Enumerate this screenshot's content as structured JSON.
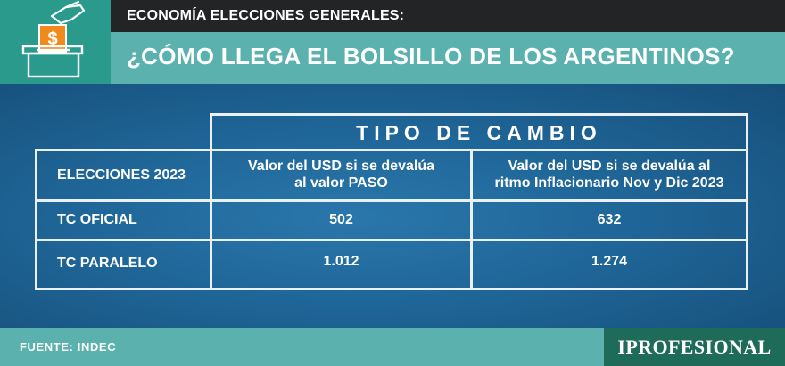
{
  "header": {
    "kicker": "ECONOMÍA ELECCIONES GENERALES:",
    "title": "¿CÓMO LLEGA EL BOLSILLO DE LOS ARGENTINOS?"
  },
  "logo": {
    "icon": "ballot-box-dollar-icon",
    "symbol": "$"
  },
  "table": {
    "group_header": "TIPO DE CAMBIO",
    "row_header": "ELECCIONES 2023",
    "columns": [
      "Valor del USD si se devalúa al valor PASO",
      "Valor del USD si se devalúa al ritmo Inflacionario Nov y Dic 2023"
    ],
    "column_lines": [
      [
        "Valor del USD si se devalúa",
        "al valor PASO"
      ],
      [
        "Valor del USD si se devalúa al",
        "ritmo Inflacionario Nov y Dic 2023"
      ]
    ],
    "rows": [
      {
        "label": "TC OFICIAL",
        "values": [
          "502",
          "632"
        ]
      },
      {
        "label": "TC PARALELO",
        "values": [
          "1.012",
          "1.274"
        ]
      }
    ]
  },
  "footer": {
    "source": "FUENTE: INDEC",
    "brand": "IPROFESIONAL"
  },
  "colors": {
    "teal_dark": "#2a9a8c",
    "teal_light": "#5bb1ae",
    "header_black": "#222426",
    "blue": "#1d5f8e",
    "brand_green": "#1f6b5a",
    "icon_orange": "#f08a1c"
  }
}
